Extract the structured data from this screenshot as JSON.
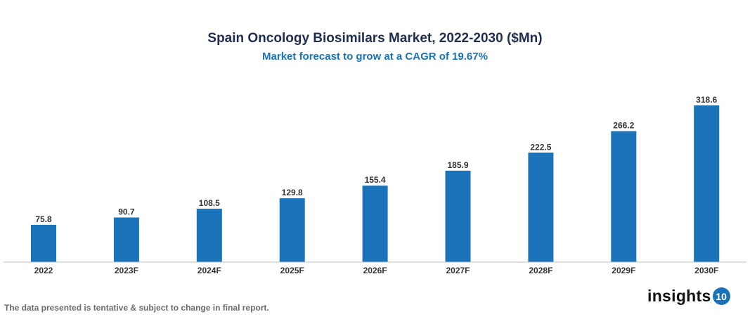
{
  "chart_data": {
    "type": "bar",
    "title": "Spain Oncology Biosimilars Market, 2022-2030 ($Mn)",
    "subtitle": "Market forecast to grow at a CAGR of 19.67%",
    "categories": [
      "2022",
      "2023F",
      "2024F",
      "2025F",
      "2026F",
      "2027F",
      "2028F",
      "2029F",
      "2030F"
    ],
    "values": [
      75.8,
      90.7,
      108.5,
      129.8,
      155.4,
      185.9,
      222.5,
      266.2,
      318.6
    ],
    "data_labels": [
      "75.8",
      "90.7",
      "108.5",
      "129.8",
      "155.4",
      "185.9",
      "222.5",
      "266.2",
      "318.6"
    ],
    "xlabel": "",
    "ylabel": "",
    "ylim": [
      0,
      318.6
    ],
    "grid": false,
    "bar_color": "#1a73b9"
  },
  "footer": {
    "note": "The data presented is tentative & subject to change in final report.",
    "logo_text": "insights",
    "logo_badge": "10"
  }
}
